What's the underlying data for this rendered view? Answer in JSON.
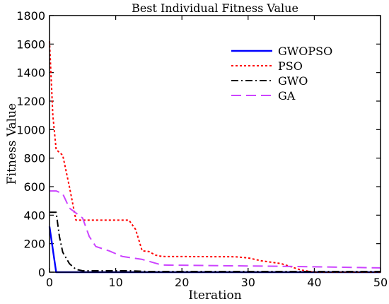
{
  "chart_data": {
    "type": "line",
    "title": "Best Individual Fitness Value",
    "xlabel": "Iteration",
    "ylabel": "Fitness Value",
    "xlim": [
      0,
      50
    ],
    "ylim": [
      0,
      1800
    ],
    "xticks": [
      0,
      10,
      20,
      30,
      40,
      50
    ],
    "yticks": [
      0,
      200,
      400,
      600,
      800,
      1000,
      1200,
      1400,
      1600,
      1800
    ],
    "grid": false,
    "legend_position": "top-right",
    "series": [
      {
        "name": "GWOPSO",
        "color": "#0000ff",
        "style": "solid",
        "points": [
          [
            0,
            320
          ],
          [
            1,
            0
          ],
          [
            50,
            0
          ]
        ]
      },
      {
        "name": "PSO",
        "color": "#ff0000",
        "style": "dotted",
        "points": [
          [
            0,
            1620
          ],
          [
            0.5,
            1100
          ],
          [
            1,
            860
          ],
          [
            2,
            820
          ],
          [
            3,
            600
          ],
          [
            4,
            365
          ],
          [
            12,
            365
          ],
          [
            13,
            300
          ],
          [
            14,
            150
          ],
          [
            15,
            145
          ],
          [
            16,
            120
          ],
          [
            17,
            110
          ],
          [
            28,
            108
          ],
          [
            30,
            100
          ],
          [
            32,
            80
          ],
          [
            35,
            60
          ],
          [
            37,
            30
          ],
          [
            38,
            15
          ],
          [
            40,
            0
          ],
          [
            50,
            0
          ]
        ]
      },
      {
        "name": "GWO",
        "color": "#000000",
        "style": "dashdot",
        "points": [
          [
            0,
            420
          ],
          [
            1,
            420
          ],
          [
            1.5,
            250
          ],
          [
            2,
            140
          ],
          [
            3,
            60
          ],
          [
            4,
            20
          ],
          [
            5,
            10
          ],
          [
            12,
            10
          ],
          [
            15,
            5
          ],
          [
            50,
            5
          ]
        ]
      },
      {
        "name": "GA",
        "color": "#cc44ff",
        "style": "dashed",
        "points": [
          [
            0,
            570
          ],
          [
            1,
            570
          ],
          [
            2,
            550
          ],
          [
            3,
            450
          ],
          [
            5,
            380
          ],
          [
            6,
            250
          ],
          [
            7,
            180
          ],
          [
            9,
            150
          ],
          [
            11,
            110
          ],
          [
            14,
            90
          ],
          [
            17,
            50
          ],
          [
            37,
            40
          ],
          [
            50,
            30
          ]
        ]
      }
    ]
  }
}
